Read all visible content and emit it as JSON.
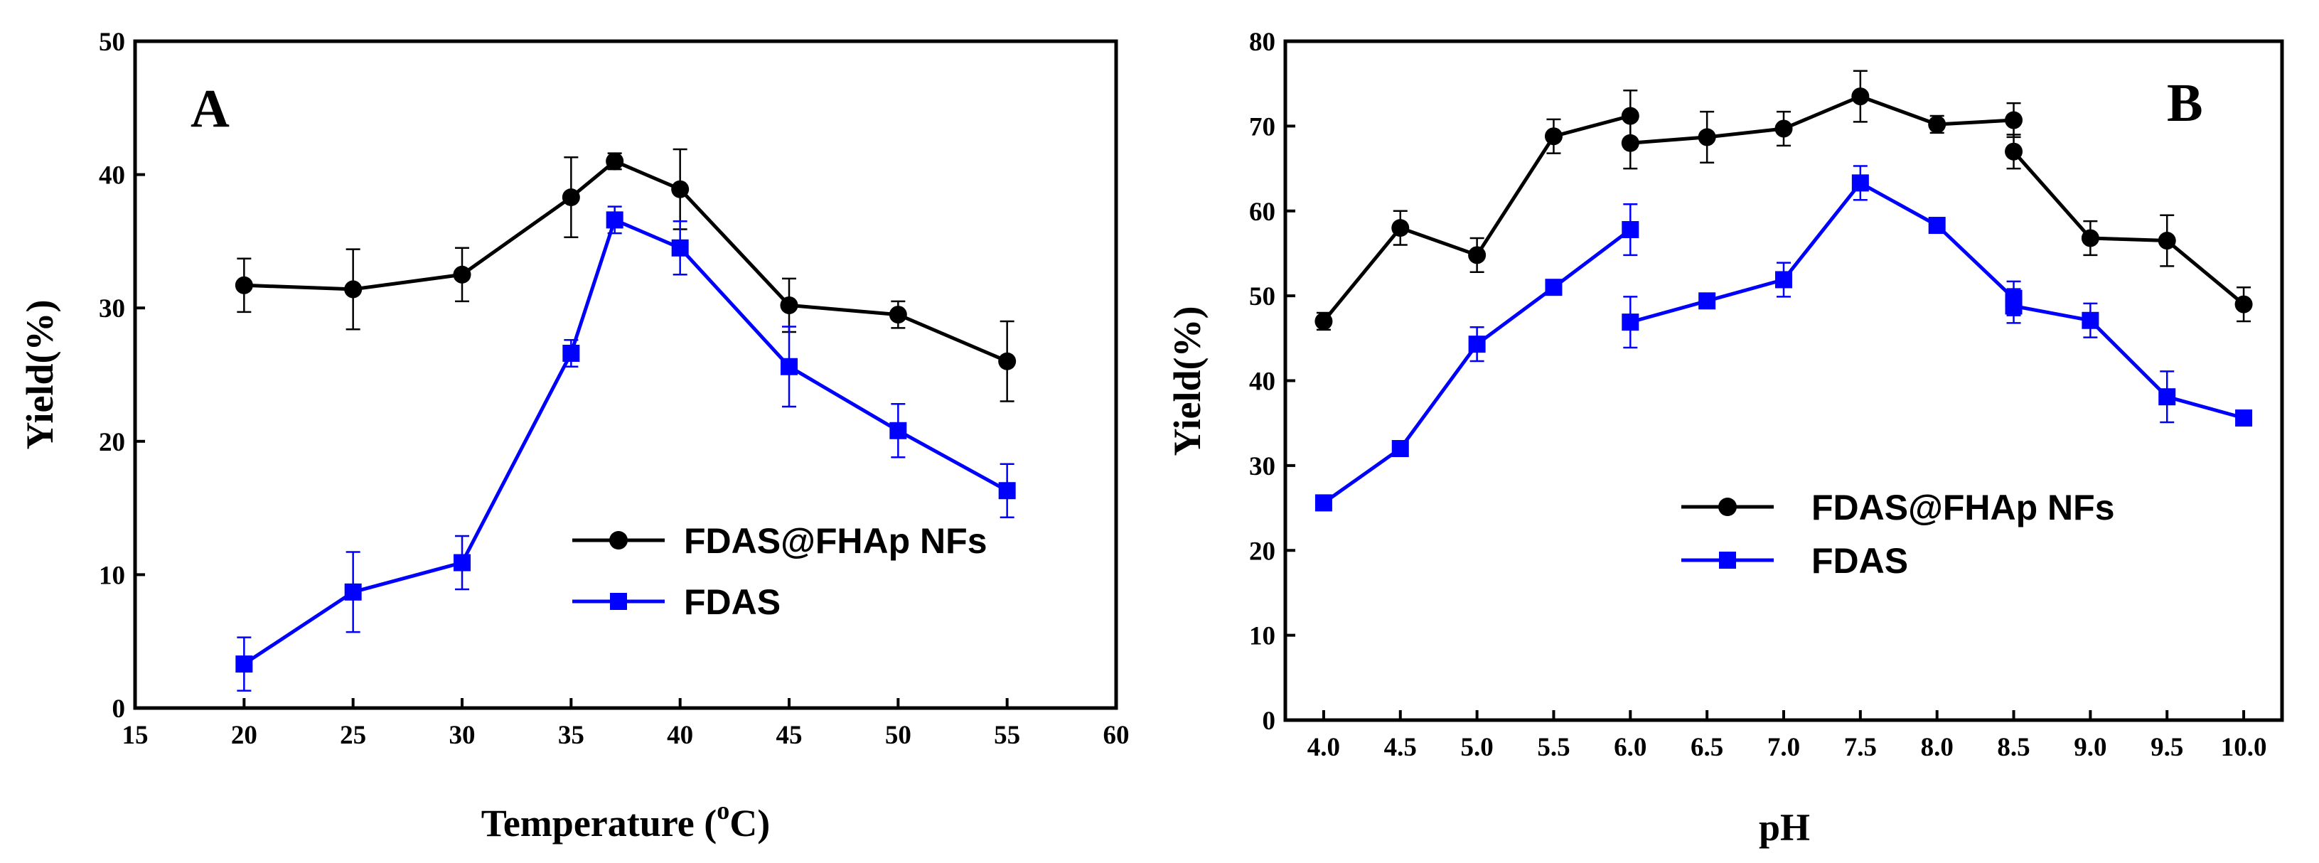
{
  "chart_data": [
    {
      "type": "line",
      "panel_label": "A",
      "xlabel": "Temperature (",
      "xlabel_sup": "o",
      "xlabel_tail": "C)",
      "ylabel": "Yield(%)",
      "xlim": [
        15,
        60
      ],
      "ylim": [
        0,
        50
      ],
      "xticks": [
        15,
        20,
        25,
        30,
        35,
        40,
        45,
        50,
        55,
        60
      ],
      "yticks": [
        0,
        10,
        20,
        30,
        40,
        50
      ],
      "legend_position": "center-right",
      "series": [
        {
          "name": "FDAS@FHAp NFs",
          "color": "#000000",
          "marker": "circle",
          "points": [
            {
              "x": 20,
              "y": 31.7,
              "err": 2.0
            },
            {
              "x": 25,
              "y": 31.4,
              "err": 3.0
            },
            {
              "x": 30,
              "y": 32.5,
              "err": 2.0
            },
            {
              "x": 35,
              "y": 38.3,
              "err": 3.0
            },
            {
              "x": 37,
              "y": 41.0,
              "err": 0.6
            },
            {
              "x": 40,
              "y": 38.9,
              "err": 3.0
            },
            {
              "x": 45,
              "y": 30.2,
              "err": 2.0
            },
            {
              "x": 50,
              "y": 29.5,
              "err": 1.0
            },
            {
              "x": 55,
              "y": 26.0,
              "err": 3.0
            }
          ]
        },
        {
          "name": "FDAS",
          "color": "#0000ff",
          "marker": "square",
          "points": [
            {
              "x": 20,
              "y": 3.3,
              "err": 2.0
            },
            {
              "x": 25,
              "y": 8.7,
              "err": 3.0
            },
            {
              "x": 30,
              "y": 10.9,
              "err": 2.0
            },
            {
              "x": 35,
              "y": 26.6,
              "err": 1.0
            },
            {
              "x": 37,
              "y": 36.6,
              "err": 1.0
            },
            {
              "x": 40,
              "y": 34.5,
              "err": 2.0
            },
            {
              "x": 45,
              "y": 25.6,
              "err": 3.0
            },
            {
              "x": 50,
              "y": 20.8,
              "err": 2.0
            },
            {
              "x": 55,
              "y": 16.3,
              "err": 2.0
            }
          ]
        }
      ]
    },
    {
      "type": "line",
      "panel_label": "B",
      "xlabel": "pH",
      "ylabel": "Yield(%)",
      "xlim": [
        3.75,
        10.25
      ],
      "ylim": [
        0,
        80
      ],
      "xticks": [
        4.0,
        4.5,
        5.0,
        5.5,
        6.0,
        6.5,
        7.0,
        7.5,
        8.0,
        8.5,
        9.0,
        9.5,
        10.0
      ],
      "xtick_labels": [
        "4.0",
        "4.5",
        "5.0",
        "5.5",
        "6.0",
        "6.5",
        "7.0",
        "7.5",
        "8.0",
        "8.5",
        "9.0",
        "9.5",
        "10.0"
      ],
      "yticks": [
        0,
        10,
        20,
        30,
        40,
        50,
        60,
        70,
        80
      ],
      "legend_position": "center-right",
      "series": [
        {
          "name": "FDAS@FHAp NFs",
          "color": "#000000",
          "marker": "circle",
          "segments": [
            [
              {
                "x": 4.0,
                "y": 47.0,
                "err": 1.0
              },
              {
                "x": 4.5,
                "y": 58.0,
                "err": 2.0
              },
              {
                "x": 5.0,
                "y": 54.8,
                "err": 2.0
              },
              {
                "x": 5.5,
                "y": 68.8,
                "err": 2.0
              },
              {
                "x": 6.0,
                "y": 71.2,
                "err": 3.0
              }
            ],
            [
              {
                "x": 6.0,
                "y": 68.0,
                "err": 3.0
              },
              {
                "x": 6.5,
                "y": 68.7,
                "err": 3.0
              },
              {
                "x": 7.0,
                "y": 69.7,
                "err": 2.0
              },
              {
                "x": 7.5,
                "y": 73.5,
                "err": 3.0
              },
              {
                "x": 8.0,
                "y": 70.2,
                "err": 1.0
              },
              {
                "x": 8.5,
                "y": 70.7,
                "err": 2.0
              }
            ],
            [
              {
                "x": 8.5,
                "y": 67.0,
                "err": 2.0
              },
              {
                "x": 9.0,
                "y": 56.8,
                "err": 2.0
              },
              {
                "x": 9.5,
                "y": 56.5,
                "err": 3.0
              },
              {
                "x": 10.0,
                "y": 49.0,
                "err": 2.0
              }
            ]
          ]
        },
        {
          "name": "FDAS",
          "color": "#0000ff",
          "marker": "square",
          "segments": [
            [
              {
                "x": 4.0,
                "y": 25.6,
                "err": 0.5
              },
              {
                "x": 4.5,
                "y": 32.0,
                "err": 0.5
              },
              {
                "x": 5.0,
                "y": 44.3,
                "err": 2.0
              },
              {
                "x": 5.5,
                "y": 51.0,
                "err": 0.5
              },
              {
                "x": 6.0,
                "y": 57.8,
                "err": 3.0
              }
            ],
            [
              {
                "x": 6.0,
                "y": 46.9,
                "err": 3.0
              },
              {
                "x": 6.5,
                "y": 49.4,
                "err": 0.5
              },
              {
                "x": 7.0,
                "y": 51.9,
                "err": 2.0
              },
              {
                "x": 7.5,
                "y": 63.3,
                "err": 2.0
              },
              {
                "x": 8.0,
                "y": 58.3,
                "err": 0.5
              },
              {
                "x": 8.5,
                "y": 49.7,
                "err": 2.0
              }
            ],
            [
              {
                "x": 8.5,
                "y": 48.8,
                "err": 2.0
              },
              {
                "x": 9.0,
                "y": 47.1,
                "err": 2.0
              },
              {
                "x": 9.5,
                "y": 38.1,
                "err": 3.0
              },
              {
                "x": 10.0,
                "y": 35.6,
                "err": 0.5
              }
            ]
          ]
        }
      ]
    }
  ]
}
